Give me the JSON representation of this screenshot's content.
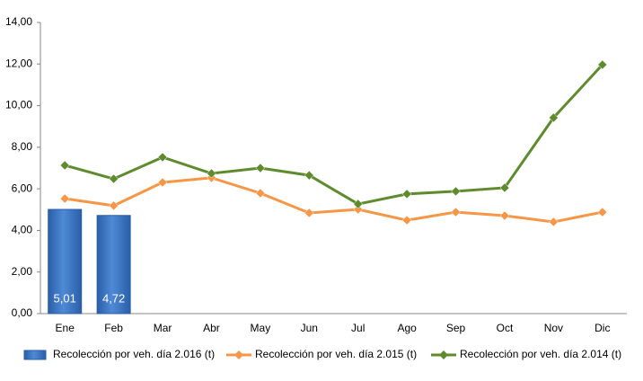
{
  "chart_data": {
    "type": "bar",
    "categories": [
      "Ene",
      "Feb",
      "Mar",
      "Abr",
      "May",
      "Jun",
      "Jul",
      "Ago",
      "Sep",
      "Oct",
      "Nov",
      "Dic"
    ],
    "series": [
      {
        "name": "Recolección por veh. día 2.016 (t)",
        "type": "bar",
        "color": "#3a72c4",
        "values": [
          5.01,
          4.72,
          null,
          null,
          null,
          null,
          null,
          null,
          null,
          null,
          null,
          null
        ],
        "value_labels": [
          "5,01",
          "4,72",
          null,
          null,
          null,
          null,
          null,
          null,
          null,
          null,
          null,
          null
        ]
      },
      {
        "name": "Recolección por veh. día 2.015 (t)",
        "type": "line",
        "color": "#f79646",
        "values": [
          5.53,
          5.19,
          6.31,
          6.53,
          5.79,
          4.84,
          5.01,
          4.49,
          4.88,
          4.71,
          4.41,
          4.88
        ]
      },
      {
        "name": "Recolección por veh. día 2.014 (t)",
        "type": "line",
        "color": "#5e8b2e",
        "values": [
          7.13,
          6.48,
          7.52,
          6.74,
          7.0,
          6.65,
          5.27,
          5.75,
          5.88,
          6.05,
          9.42,
          11.97
        ]
      }
    ],
    "ylim": [
      0,
      14
    ],
    "yticks": [
      {
        "value": 0,
        "label": "0,00"
      },
      {
        "value": 2,
        "label": "2,00"
      },
      {
        "value": 4,
        "label": "4,00"
      },
      {
        "value": 6,
        "label": "6,00"
      },
      {
        "value": 8,
        "label": "8,00"
      },
      {
        "value": 10,
        "label": "10,00"
      },
      {
        "value": 12,
        "label": "12,00"
      },
      {
        "value": 14,
        "label": "14,00"
      }
    ],
    "legend": "bottom"
  }
}
